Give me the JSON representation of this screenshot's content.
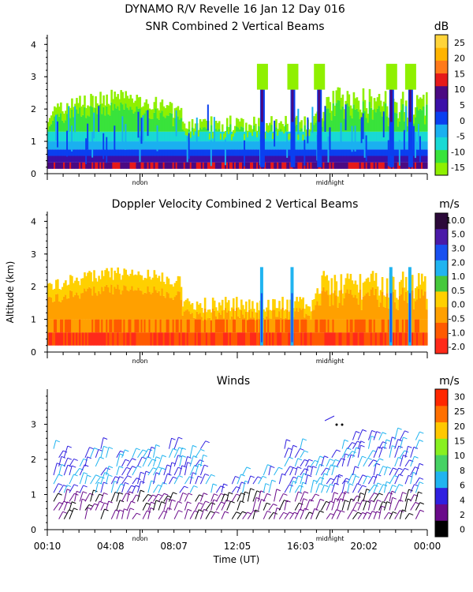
{
  "header": {
    "line1": "DYNAMO R/V Revelle  16 Jan 12 Day 016"
  },
  "colors": {
    "snr": [
      "#8ff000",
      "#39e33b",
      "#19d9d4",
      "#1ab0f0",
      "#0a3ff0",
      "#3b10a8",
      "#4b0a82",
      "#e61a1a",
      "#ff7a1a",
      "#ffb400",
      "#ffd43a"
    ],
    "vel": [
      "#ff2a1a",
      "#ff5a00",
      "#ffa000",
      "#ffd000",
      "#46c83c",
      "#20b4f0",
      "#1850f0",
      "#4a1aa8",
      "#2c0a3a"
    ],
    "wind": [
      "#000000",
      "#6a0a8a",
      "#3020e0",
      "#20b4f0",
      "#46d264",
      "#88f020",
      "#ffc800",
      "#ff7000",
      "#ff2800"
    ]
  },
  "chart_data": [
    {
      "id": "snr",
      "type": "heatmap",
      "title": "SNR Combined 2 Vertical Beams",
      "unit": "dB",
      "ylim": [
        0,
        4.3
      ],
      "yticks": [
        "0",
        "1",
        "2",
        "3",
        "4"
      ],
      "x_markers": [
        "noon",
        "midnight"
      ],
      "colorbar_labels": [
        "25",
        "20",
        "15",
        "10",
        "5",
        "0",
        "-5",
        "-10",
        "-15"
      ],
      "colorbar_range": [
        -18,
        28
      ]
    },
    {
      "id": "vel",
      "type": "heatmap",
      "title": "Doppler Velocity Combined 2 Vertical Beams",
      "unit": "m/s",
      "ylabel": "Altitude (km)",
      "ylim": [
        0,
        4.3
      ],
      "yticks": [
        "0",
        "1",
        "2",
        "3",
        "4"
      ],
      "x_markers": [
        "noon",
        "midnight"
      ],
      "colorbar_labels": [
        "10.0",
        "5.0",
        "3.0",
        "2.0",
        "1.0",
        "0.5",
        "0.0",
        "-0.5",
        "-1.0",
        "-2.0"
      ]
    },
    {
      "id": "winds",
      "type": "scatter",
      "title": "Winds",
      "unit": "m/s",
      "ylim": [
        0,
        4
      ],
      "yticks": [
        "0",
        "1",
        "2",
        "3"
      ],
      "x_markers": [
        "noon",
        "midnight"
      ],
      "xticks": [
        "00:10",
        "04:08",
        "08:07",
        "12:05",
        "16:03",
        "20:02",
        "00:00"
      ],
      "xlabel": "Time (UT)",
      "colorbar_labels": [
        "30",
        "25",
        "20",
        "15",
        "10",
        "8",
        "6",
        "4",
        "2",
        "0"
      ]
    }
  ]
}
